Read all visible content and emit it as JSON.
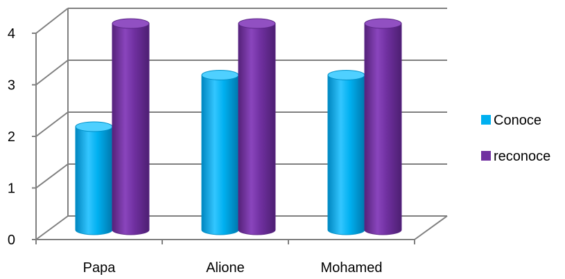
{
  "chart_data": {
    "type": "bar",
    "style": "3d-cylinder",
    "categories": [
      "Papa",
      "Alione",
      "Mohamed"
    ],
    "series": [
      {
        "name": "Conoce",
        "values": [
          2,
          3,
          3
        ],
        "color": "#00B0F0"
      },
      {
        "name": "reconoce",
        "values": [
          4,
          4,
          4
        ],
        "color": "#7030A0"
      }
    ],
    "ylim": [
      0,
      4
    ],
    "yticks": [
      "0",
      "1",
      "2",
      "3",
      "4"
    ],
    "grid": true,
    "legend": "right"
  }
}
